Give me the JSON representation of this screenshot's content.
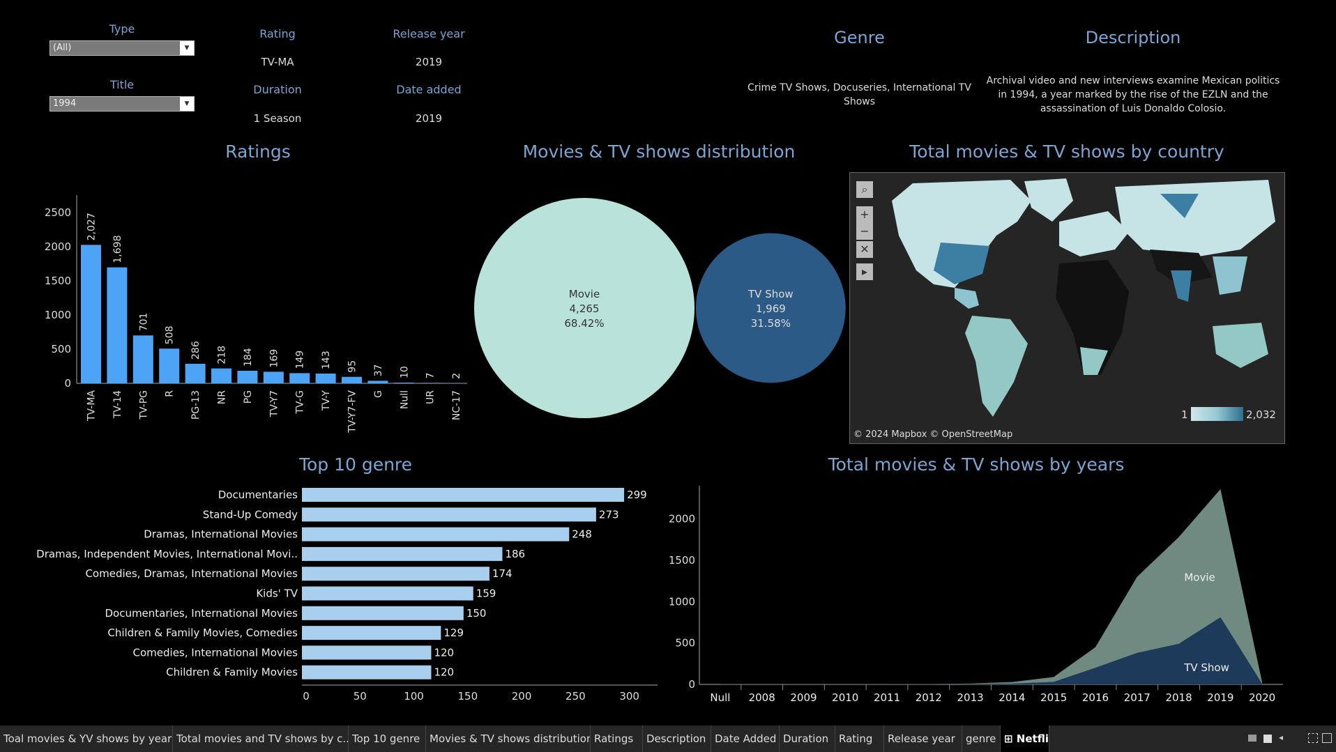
{
  "filters": {
    "type": {
      "label": "Type",
      "value": "(All)"
    },
    "title": {
      "label": "Title",
      "value": "1994"
    }
  },
  "details": {
    "rating": {
      "label": "Rating",
      "value": "TV-MA"
    },
    "release_year": {
      "label": "Release year",
      "value": "2019"
    },
    "duration": {
      "label": "Duration",
      "value": "1 Season"
    },
    "date_added": {
      "label": "Date added",
      "value": "2019"
    },
    "genre": {
      "label": "Genre",
      "value": "Crime TV Shows, Docuseries, International TV Shows"
    },
    "description": {
      "label": "Description",
      "value": "Archival video and new interviews examine Mexican politics in 1994, a year marked by the rise of the EZLN and the assassination of Luis Donaldo Colosio."
    }
  },
  "sections": {
    "ratings": "Ratings",
    "distribution": "Movies & TV shows distribution",
    "country": "Total movies & TV shows by country",
    "genre": "Top 10 genre",
    "years": "Total movies & TV shows by years"
  },
  "map": {
    "attribution": "© 2024 Mapbox © OpenStreetMap",
    "legend_min": "1",
    "legend_max": "2,032",
    "colors": {
      "land": "#2a2a2a",
      "low": "#c6e3e5",
      "mid": "#8ec4cf",
      "high": "#3d7fa3",
      "water": "#262626"
    },
    "buttons": {
      "search": "⌕",
      "zoom_in": "+",
      "zoom_out": "−",
      "pin": "✕",
      "expand": "▸"
    }
  },
  "chart_data": [
    {
      "type": "bar",
      "title": "Ratings",
      "categories": [
        "TV-MA",
        "TV-14",
        "TV-PG",
        "R",
        "PG-13",
        "NR",
        "PG",
        "TV-Y7",
        "TV-G",
        "TV-Y",
        "TV-Y7-FV",
        "G",
        "Null",
        "UR",
        "NC-17"
      ],
      "values": [
        2027,
        1698,
        701,
        508,
        286,
        218,
        184,
        169,
        149,
        143,
        95,
        37,
        10,
        7,
        2
      ],
      "value_labels": [
        "2,027",
        "1,698",
        "701",
        "508",
        "286",
        "218",
        "184",
        "169",
        "149",
        "143",
        "95",
        "37",
        "10",
        "7",
        "2"
      ],
      "yticks": [
        0,
        500,
        1000,
        1500,
        2000,
        2500
      ],
      "ylim": [
        0,
        2500
      ],
      "color": "#4da4f7"
    },
    {
      "type": "bubble",
      "title": "Movies & TV shows distribution",
      "items": [
        {
          "name": "Movie",
          "value": 4265,
          "value_label": "4,265",
          "pct": "68.42%",
          "color": "#b9e3d9"
        },
        {
          "name": "TV Show",
          "value": 1969,
          "value_label": "1,969",
          "pct": "31.58%",
          "color": "#2c5a86"
        }
      ]
    },
    {
      "type": "bar",
      "orientation": "horizontal",
      "title": "Top 10 genre",
      "categories": [
        "Documentaries",
        "Stand-Up Comedy",
        "Dramas, International Movies",
        "Dramas, Independent Movies, International Movi..",
        "Comedies, Dramas, International Movies",
        "Kids' TV",
        "Documentaries, International Movies",
        "Children & Family Movies, Comedies",
        "Comedies, International Movies",
        "Children & Family Movies"
      ],
      "values": [
        299,
        273,
        248,
        186,
        174,
        159,
        150,
        129,
        120,
        120
      ],
      "xticks": [
        0,
        50,
        100,
        150,
        200,
        250,
        300
      ],
      "xlim": [
        0,
        330
      ],
      "color": "#a9cfee"
    },
    {
      "type": "area",
      "title": "Total movies & TV shows by years",
      "categories": [
        "Null",
        "2008",
        "2009",
        "2010",
        "2011",
        "2012",
        "2013",
        "2014",
        "2015",
        "2016",
        "2017",
        "2018",
        "2019",
        "2020"
      ],
      "series": [
        {
          "name": "Movie",
          "values": [
            3,
            2,
            2,
            1,
            3,
            2,
            6,
            20,
            60,
            250,
            920,
            1290,
            1550,
            20
          ],
          "color": "#6f8a80"
        },
        {
          "name": "TV Show",
          "values": [
            1,
            1,
            1,
            1,
            1,
            2,
            5,
            8,
            30,
            200,
            380,
            490,
            810,
            5
          ],
          "color": "#1e3a5a"
        }
      ],
      "yticks": [
        0,
        500,
        1000,
        1500,
        2000
      ],
      "ylim": [
        0,
        2400
      ]
    }
  ],
  "tabs": [
    {
      "label": "Toal movies & YV shows by years"
    },
    {
      "label": "Total movies and TV shows by c..."
    },
    {
      "label": "Top 10 genre"
    },
    {
      "label": "Movies & TV shows distribution"
    },
    {
      "label": "Ratings"
    },
    {
      "label": "Description"
    },
    {
      "label": "Date Added"
    },
    {
      "label": "Duration"
    },
    {
      "label": "Rating"
    },
    {
      "label": "Release year"
    },
    {
      "label": "genre"
    },
    {
      "label": "Netflix",
      "icon": "dashboard-grid-icon"
    }
  ]
}
